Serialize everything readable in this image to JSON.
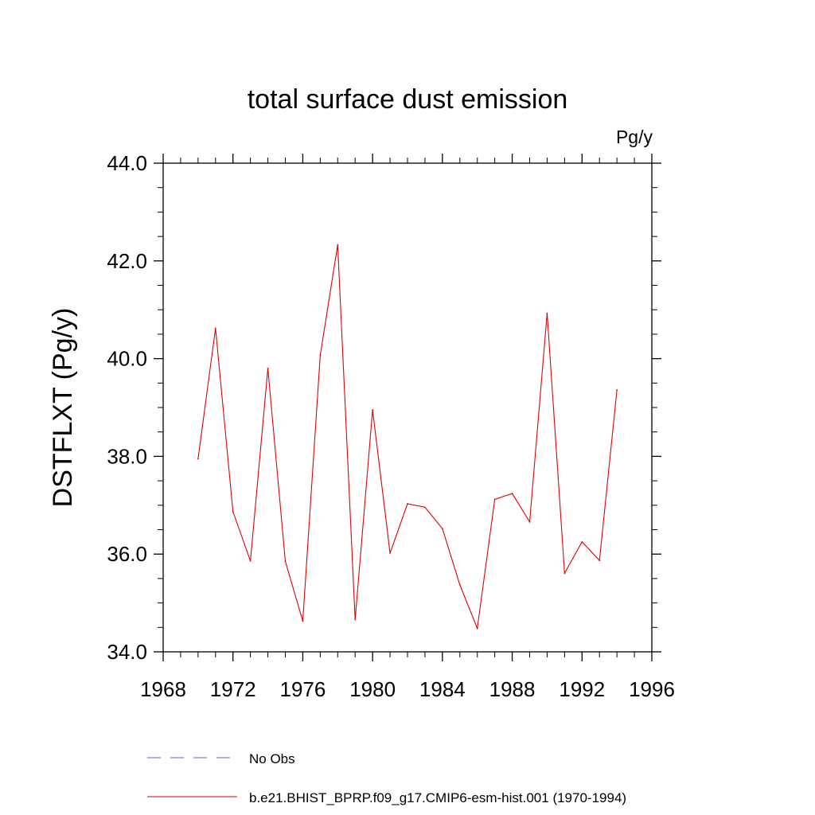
{
  "chart_data": {
    "type": "line",
    "title": "total surface dust emission",
    "units_label": "Pg/y",
    "xlabel": "",
    "ylabel": "DSTFLXT  (Pg/y)",
    "xlim": [
      1968,
      1996
    ],
    "ylim": [
      34.0,
      44.0
    ],
    "x_ticks": [
      1968,
      1972,
      1976,
      1980,
      1984,
      1988,
      1992,
      1996
    ],
    "x_tick_labels": [
      "1968",
      "1972",
      "1976",
      "1980",
      "1984",
      "1988",
      "1992",
      "1996"
    ],
    "x_minor_step": 1,
    "y_ticks": [
      34.0,
      36.0,
      38.0,
      40.0,
      42.0,
      44.0
    ],
    "y_tick_labels": [
      "34.0",
      "36.0",
      "38.0",
      "40.0",
      "42.0",
      "44.0"
    ],
    "y_minor_step": 0.5,
    "grid": false,
    "series": [
      {
        "name": "b.e21.BHIST_BPRP.f09_g17.CMIP6-esm-hist.001 (1970-1994)",
        "color": "#e00000",
        "x": [
          1970,
          1971,
          1972,
          1973,
          1974,
          1975,
          1976,
          1977,
          1978,
          1979,
          1980,
          1981,
          1982,
          1983,
          1984,
          1985,
          1986,
          1987,
          1988,
          1989,
          1990,
          1991,
          1992,
          1993,
          1994
        ],
        "values": [
          37.95,
          40.62,
          36.87,
          35.86,
          39.8,
          35.85,
          34.63,
          40.07,
          42.33,
          34.66,
          38.95,
          36.02,
          37.03,
          36.96,
          36.52,
          35.37,
          34.48,
          37.12,
          37.24,
          36.66,
          40.93,
          35.61,
          36.25,
          35.87,
          39.36
        ]
      }
    ],
    "legend": [
      {
        "label": "No Obs",
        "style": "dashed",
        "color": "#6a5acd"
      },
      {
        "label": "b.e21.BHIST_BPRP.f09_g17.CMIP6-esm-hist.001 (1970-1994)",
        "style": "solid",
        "color": "#e00000"
      }
    ],
    "legend_position": "bottom-left"
  }
}
